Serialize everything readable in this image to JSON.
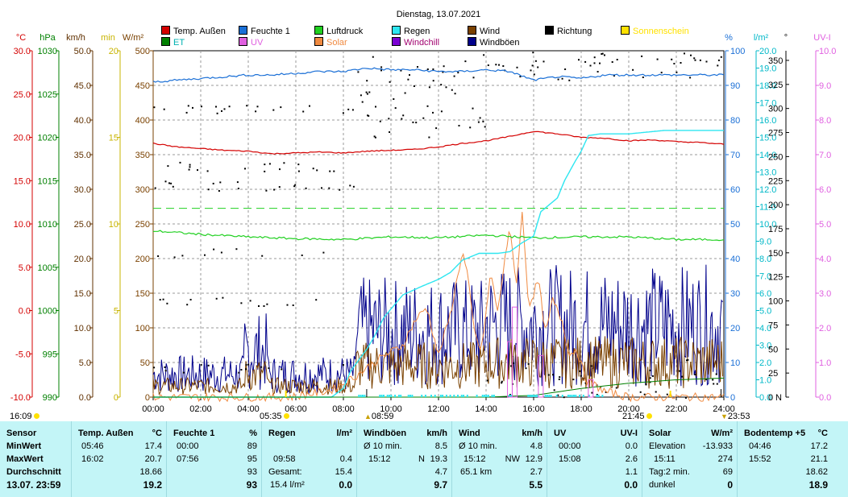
{
  "title": "Dienstag, 13.07.2021",
  "colors": {
    "temp": "#d40000",
    "humidity": "#1a6fd6",
    "pressure": "#20d020",
    "rain": "#2ee6f0",
    "wind": "#7a4100",
    "gust": "#00008b",
    "solar": "#f08a40",
    "direction": "#000000",
    "sunshine": "#ffe100",
    "et": "#008000",
    "uv": "#e060e0",
    "windchill": "#7b00d4",
    "panel": "#c3f5f7"
  },
  "legend": [
    {
      "label": "Temp. Außen",
      "color": "#d40000"
    },
    {
      "label": "Feuchte 1",
      "color": "#1a6fd6"
    },
    {
      "label": "Luftdruck",
      "color": "#20d020"
    },
    {
      "label": "Regen",
      "color": "#2ee6f0"
    },
    {
      "label": "Wind",
      "color": "#7a4100"
    },
    {
      "label": "Richtung",
      "color": "#000000"
    },
    {
      "label": "Sonnenschein",
      "color": "#ffe100"
    },
    {
      "label": "ET",
      "color": "#008000"
    },
    {
      "label": "UV",
      "color": "#e060e0"
    },
    {
      "label": "Solar",
      "color": "#f08a40"
    },
    {
      "label": "Windchill",
      "color": "#7b00d4"
    },
    {
      "label": "Windböen",
      "color": "#00008b"
    }
  ],
  "chart_data": {
    "type": "line",
    "title": "Dienstag, 13.07.2021",
    "x_ticks": [
      "00:00",
      "02:00",
      "04:00",
      "06:00",
      "08:00",
      "10:00",
      "12:00",
      "14:00",
      "16:00",
      "18:00",
      "20:00",
      "22:00",
      "24:00"
    ],
    "x_range_hours": [
      0,
      24
    ],
    "axes": {
      "temp": {
        "unit": "°C",
        "range": [
          -10,
          30
        ],
        "ticks": [
          "30.0",
          "25.0",
          "20.0",
          "15.0",
          "10.0",
          "5.0",
          "0.0",
          "-5.0",
          "-10.0"
        ]
      },
      "pressure": {
        "unit": "hPa",
        "range": [
          990,
          1030
        ],
        "ticks": [
          "1030",
          "1025",
          "1020",
          "1015",
          "1010",
          "1005",
          "1000",
          "995",
          "990"
        ]
      },
      "wind": {
        "unit": "km/h",
        "range": [
          0,
          50
        ],
        "ticks": [
          "50.0",
          "45.0",
          "40.0",
          "35.0",
          "30.0",
          "25.0",
          "20.0",
          "15.0",
          "10.0",
          "5.0",
          "0.0"
        ]
      },
      "minutes": {
        "unit": "min",
        "range": [
          0,
          20
        ],
        "ticks": [
          "20",
          "15",
          "10",
          "5",
          "0"
        ]
      },
      "solar": {
        "unit": "W/m²",
        "range": [
          0,
          500
        ],
        "ticks": [
          "500",
          "450",
          "400",
          "350",
          "300",
          "250",
          "200",
          "150",
          "100",
          "50",
          "0"
        ]
      },
      "humidity": {
        "unit": "%",
        "range": [
          0,
          100
        ],
        "ticks": [
          "100",
          "90",
          "80",
          "70",
          "60",
          "50",
          "40",
          "30",
          "20",
          "10",
          "0"
        ]
      },
      "rain": {
        "unit": "l/m²",
        "range": [
          0,
          20
        ],
        "ticks": [
          "20.0",
          "19.0",
          "18.0",
          "17.0",
          "16.0",
          "15.0",
          "14.0",
          "13.0",
          "12.0",
          "11.0",
          "10.0",
          "9.0",
          "8.0",
          "7.0",
          "6.0",
          "5.0",
          "4.0",
          "3.0",
          "2.0",
          "1.0",
          "0.0"
        ]
      },
      "direction": {
        "unit": "°",
        "range": [
          0,
          360
        ],
        "ticks": [
          "350",
          "325",
          "300",
          "275",
          "250",
          "225",
          "200",
          "175",
          "150",
          "125",
          "100",
          "75",
          "50",
          "25",
          "0"
        ],
        "zero_label": "N"
      },
      "uv": {
        "unit": "UV-I",
        "range": [
          0,
          10
        ],
        "ticks": [
          "10.0",
          "9.0",
          "8.0",
          "7.0",
          "6.0",
          "5.0",
          "4.0",
          "3.0",
          "2.0",
          "1.0",
          "0.0"
        ]
      }
    },
    "series": [
      {
        "name": "Temp. Außen",
        "axis": "temp",
        "x": [
          0,
          1,
          2,
          3,
          4,
          5,
          6,
          7,
          8,
          9,
          10,
          11,
          12,
          13,
          14,
          15,
          16,
          17,
          18,
          19,
          20,
          21,
          22,
          23,
          24
        ],
        "values": [
          19.3,
          18.9,
          18.7,
          18.5,
          18.4,
          18.1,
          18.2,
          18.3,
          18.2,
          18.4,
          18.5,
          18.6,
          18.9,
          19.3,
          19.6,
          20.1,
          20.7,
          20.4,
          20.0,
          19.9,
          19.6,
          19.7,
          19.5,
          19.4,
          19.2
        ]
      },
      {
        "name": "Feuchte 1",
        "axis": "humidity",
        "x": [
          0,
          1,
          2,
          3,
          4,
          5,
          6,
          7,
          8,
          9,
          10,
          11,
          12,
          13,
          14,
          15,
          16,
          17,
          18,
          19,
          20,
          21,
          22,
          23,
          24
        ],
        "values": [
          91,
          91.5,
          92,
          92.5,
          93,
          93,
          93.5,
          94,
          94,
          95,
          94.5,
          94.5,
          94,
          94,
          94.5,
          94,
          91.5,
          92.5,
          92,
          93,
          93,
          93,
          93,
          93,
          93
        ]
      },
      {
        "name": "Luftdruck",
        "axis": "pressure",
        "x": [
          0,
          2,
          4,
          6,
          8,
          10,
          12,
          14,
          16,
          18,
          20,
          22,
          24
        ],
        "values": [
          1009.2,
          1008.8,
          1008.5,
          1008.3,
          1008.2,
          1008.5,
          1008.4,
          1008.7,
          1008.4,
          1008.5,
          1008.5,
          1008.2,
          1008.2
        ]
      },
      {
        "name": "Regen",
        "axis": "rain",
        "x": [
          0,
          7.5,
          8.0,
          8.3,
          9.0,
          9.3,
          9.7,
          10.5,
          11.3,
          12.0,
          12.5,
          13.0,
          13.7,
          14.5,
          15.0,
          15.5,
          16.0,
          16.3,
          17.0,
          17.3,
          17.7,
          18.0,
          18.3,
          18.8,
          20.0,
          21.5,
          23.0,
          24.0
        ],
        "values": [
          0,
          0,
          0.5,
          1.5,
          2.8,
          3.5,
          4.6,
          5.9,
          6.4,
          6.8,
          7.2,
          7.9,
          8.3,
          8.3,
          8.4,
          8.9,
          9.3,
          10.7,
          11.5,
          12.5,
          13.5,
          14.2,
          15.1,
          15.2,
          15.2,
          15.4,
          15.4,
          15.4
        ]
      },
      {
        "name": "Solar",
        "axis": "solar",
        "x": [
          0,
          5.8,
          6.3,
          7.5,
          8.5,
          9.5,
          10.5,
          11.0,
          11.5,
          12.0,
          12.5,
          13.0,
          13.2,
          13.5,
          13.8,
          14.2,
          14.5,
          14.8,
          15.0,
          15.3,
          15.5,
          15.8,
          16.2,
          16.5,
          16.8,
          17.2,
          17.5,
          17.8,
          18.2,
          19,
          20,
          24
        ],
        "values": [
          0,
          0,
          3,
          10,
          30,
          55,
          75,
          110,
          130,
          60,
          120,
          210,
          180,
          95,
          65,
          180,
          120,
          205,
          240,
          160,
          274,
          130,
          170,
          90,
          140,
          110,
          60,
          70,
          25,
          8,
          0,
          0
        ]
      },
      {
        "name": "Wind",
        "axis": "wind",
        "note": "10-min average, noisy 0–8 km/h, max Ø 4.8 km/h (NW 12.9 km/h gust at 15:12)"
      },
      {
        "name": "Windböen",
        "axis": "wind",
        "note": "gusts up to 19.3 km/h at 15:12"
      },
      {
        "name": "Richtung",
        "axis": "direction",
        "note": "scattered direction dots"
      },
      {
        "name": "ET",
        "axis": "rain",
        "x": [
          0,
          14,
          16,
          18,
          20,
          22,
          24
        ],
        "values": [
          0,
          0,
          0.1,
          0.5,
          0.8,
          1.0,
          1.1
        ]
      },
      {
        "name": "Sonnenschein",
        "axis": "minutes",
        "x": [
          0,
          24
        ],
        "values": [
          0,
          0
        ]
      }
    ],
    "markers": [
      {
        "label": "16:09",
        "sun": true
      },
      {
        "label": "05:35",
        "sun": true
      },
      {
        "label": "08:59",
        "symbol": "▲"
      },
      {
        "label": "21:45",
        "sun": true
      },
      {
        "label": "23:53",
        "symbol": "▼"
      }
    ]
  },
  "panel": {
    "sensor": {
      "header": "Sensor",
      "rows": [
        "MinWert",
        "MaxWert",
        "Durchschnitt"
      ],
      "date": "13.07. 23:59"
    },
    "temp": {
      "header": "Temp. Außen",
      "unit": "°C",
      "rows": [
        [
          "05:46",
          "17.4"
        ],
        [
          "16:02",
          "20.7"
        ],
        [
          "",
          "18.66"
        ]
      ],
      "current": "19.2"
    },
    "humidity": {
      "header": "Feuchte 1",
      "unit": "%",
      "rows": [
        [
          "00:00",
          "89"
        ],
        [
          "07:56",
          "95"
        ],
        [
          "",
          "93"
        ]
      ],
      "current": "93"
    },
    "rain": {
      "header": "Regen",
      "unit": "l/m²",
      "rows": [
        [
          "",
          ""
        ],
        [
          "09:58",
          "0.4"
        ],
        [
          "Gesamt:",
          "15.4"
        ]
      ],
      "last_left": "15.4 l/m²",
      "current": "0.0"
    },
    "gusts": {
      "header": "Windböen",
      "unit": "km/h",
      "rows": [
        [
          "Ø 10 min.",
          "",
          "8.5"
        ],
        [
          "15:12",
          "N",
          "19.3"
        ],
        [
          "",
          "",
          "4.7"
        ]
      ],
      "current": "9.7"
    },
    "wind": {
      "header": "Wind",
      "unit": "km/h",
      "rows": [
        [
          "Ø 10 min.",
          "",
          "4.8"
        ],
        [
          "15:12",
          "NW",
          "12.9"
        ],
        [
          "65.1 km",
          "",
          "2.7"
        ]
      ],
      "current": "5.5"
    },
    "uv": {
      "header": "UV",
      "unit": "UV-I",
      "rows": [
        [
          "00:00",
          "0.0"
        ],
        [
          "15:08",
          "2.6"
        ],
        [
          "",
          "1.1"
        ]
      ],
      "current": "0.0"
    },
    "solar": {
      "header": "Solar",
      "unit": "W/m²",
      "rows": [
        [
          "Elevation",
          "-13.933"
        ],
        [
          "15:11",
          "274"
        ],
        [
          "Tag:2 min.",
          "69"
        ]
      ],
      "last_left": "dunkel",
      "current": "0"
    },
    "soil": {
      "header": "Bodentemp +5",
      "unit": "°C",
      "rows": [
        [
          "04:46",
          "17.2"
        ],
        [
          "15:52",
          "21.1"
        ],
        [
          "",
          "18.62"
        ]
      ],
      "current": "18.9"
    }
  }
}
